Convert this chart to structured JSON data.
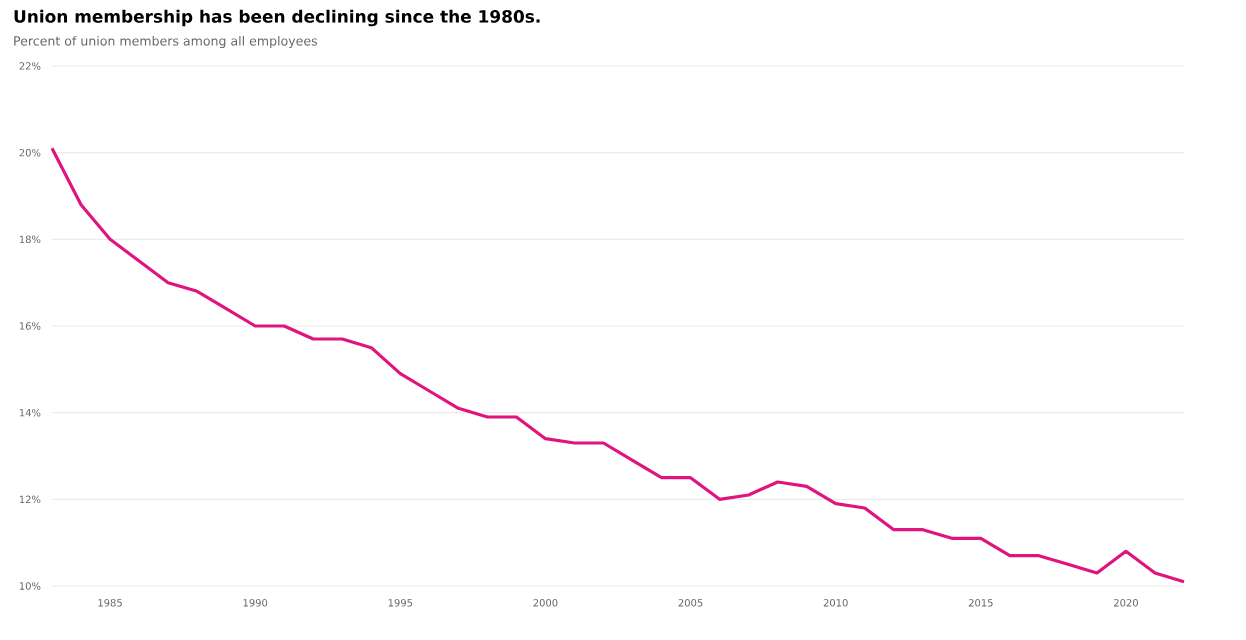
{
  "chart_data": {
    "type": "line",
    "title": "Union membership has been declining since the 1980s.",
    "subtitle": "Percent of union members among all employees",
    "x": [
      1983,
      1984,
      1985,
      1986,
      1987,
      1988,
      1989,
      1990,
      1991,
      1992,
      1993,
      1994,
      1995,
      1996,
      1997,
      1998,
      1999,
      2000,
      2001,
      2002,
      2003,
      2004,
      2005,
      2006,
      2007,
      2008,
      2009,
      2010,
      2011,
      2012,
      2013,
      2014,
      2015,
      2016,
      2017,
      2018,
      2019,
      2020,
      2021,
      2022
    ],
    "series": [
      {
        "color": "#e0147f",
        "values": [
          20.1,
          18.8,
          18.0,
          17.5,
          17.0,
          16.8,
          16.4,
          16.0,
          16.0,
          15.7,
          15.7,
          15.5,
          14.9,
          14.5,
          14.1,
          13.9,
          13.9,
          13.4,
          13.3,
          13.3,
          12.9,
          12.5,
          12.5,
          12.0,
          12.1,
          12.4,
          12.3,
          11.9,
          11.8,
          11.3,
          11.3,
          11.1,
          11.1,
          10.7,
          10.7,
          10.5,
          10.3,
          10.8,
          10.3,
          10.1
        ]
      }
    ],
    "xlim": [
      1983,
      2022
    ],
    "ylim": [
      10,
      22
    ],
    "xticks": [
      1985,
      1990,
      1995,
      2000,
      2005,
      2010,
      2015,
      2020
    ],
    "yticks": [
      {
        "value": 10,
        "label": "10%"
      },
      {
        "value": 12,
        "label": "12%"
      },
      {
        "value": 14,
        "label": "14%"
      },
      {
        "value": 16,
        "label": "16%"
      },
      {
        "value": 18,
        "label": "18%"
      },
      {
        "value": 20,
        "label": "20%"
      },
      {
        "value": 22,
        "label": "22%"
      }
    ],
    "grid": "y",
    "marker": "none",
    "line_style": "solid"
  }
}
